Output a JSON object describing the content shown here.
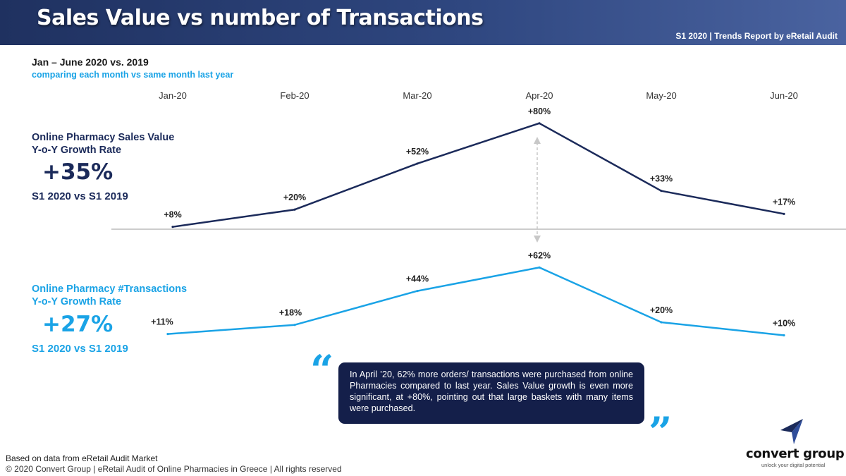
{
  "header": {
    "title": "Sales Value vs number of Transactions",
    "subtitle": "S1 2020 | Trends Report by eRetail Audit"
  },
  "period": "Jan – June 2020 vs. 2019",
  "comparison_note": "comparing each month vs same month last year",
  "kpis": {
    "sales": {
      "label_line1": "Online Pharmacy Sales Value",
      "label_line2": "Y-o-Y Growth Rate",
      "value": "+35%",
      "period": "S1 2020 vs S1 2019"
    },
    "transactions": {
      "label_line1": "Online Pharmacy #Transactions",
      "label_line2": "Y-o-Y Growth Rate",
      "value": "+27%",
      "period": "S1 2020 vs S1 2019"
    }
  },
  "callout": {
    "text": "In April ’20, 62% more orders/ transactions were purchased from online Pharmacies compared to last year. Sales Value growth is even more significant, at +80%, pointing out that large baskets with many items were purchased."
  },
  "footer": {
    "note": "Based on data from eRetail Audit Market",
    "copyright": "© 2020 Convert Group | eRetail Audit of Online Pharmacies in Greece | All rights reserved"
  },
  "logo": {
    "name": "convert group",
    "tagline": "unlock your digital potential"
  },
  "colors": {
    "navy": "#1b2a5a",
    "cyan": "#1aa3e6",
    "callout_bg": "#141f4a"
  },
  "chart_data": [
    {
      "type": "line",
      "title": "Online Pharmacy Sales Value Y-o-Y Growth Rate",
      "categories": [
        "Jan-20",
        "Feb-20",
        "Mar-20",
        "Apr-20",
        "May-20",
        "Jun-20"
      ],
      "series": [
        {
          "name": "Sales Value",
          "values": [
            8,
            20,
            52,
            80,
            33,
            17
          ]
        }
      ],
      "data_labels": [
        "+8%",
        "+20%",
        "+52%",
        "+80%",
        "+33%",
        "+17%"
      ],
      "ylim": [
        0,
        90
      ],
      "grid": false
    },
    {
      "type": "line",
      "title": "Online Pharmacy #Transactions Y-o-Y Growth Rate",
      "categories": [
        "Jan-20",
        "Feb-20",
        "Mar-20",
        "Apr-20",
        "May-20",
        "Jun-20"
      ],
      "series": [
        {
          "name": "#Transactions",
          "values": [
            11,
            18,
            44,
            62,
            20,
            10
          ]
        }
      ],
      "data_labels": [
        "+11%",
        "+18%",
        "+44%",
        "+62%",
        "+20%",
        "+10%"
      ],
      "ylim": [
        0,
        70
      ],
      "grid": false
    }
  ]
}
